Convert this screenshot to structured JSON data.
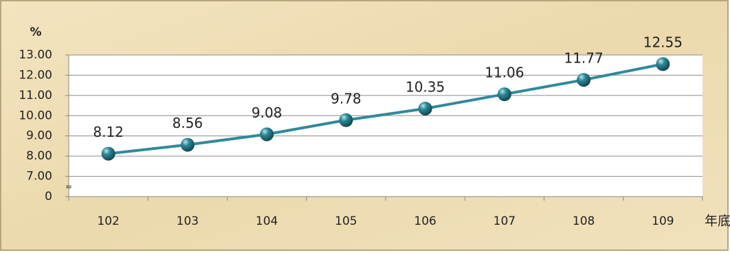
{
  "chart_data": {
    "type": "line",
    "y_label": "%",
    "x_label": "年底",
    "categories": [
      "102",
      "103",
      "104",
      "105",
      "106",
      "107",
      "108",
      "109"
    ],
    "series": [
      {
        "name": "%",
        "color": "#2f8a98",
        "values": [
          8.12,
          8.56,
          9.08,
          9.78,
          10.35,
          11.06,
          11.77,
          12.55
        ],
        "value_labels": [
          "8.12",
          "8.56",
          "9.08",
          "9.78",
          "10.35",
          "11.06",
          "11.77",
          "12.55"
        ]
      }
    ],
    "ylim": [
      0,
      13
    ],
    "axis_break": [
      0,
      7
    ],
    "yticks": [
      0,
      {
        "value": 7,
        "label": "7.00"
      },
      {
        "value": 8,
        "label": "8.00"
      },
      {
        "value": 9,
        "label": "9.00"
      },
      {
        "value": 10,
        "label": "10.00"
      },
      {
        "value": 11,
        "label": "11.00"
      },
      {
        "value": 12,
        "label": "12.00"
      },
      {
        "value": 13,
        "label": "13.00"
      }
    ],
    "grid": true
  }
}
